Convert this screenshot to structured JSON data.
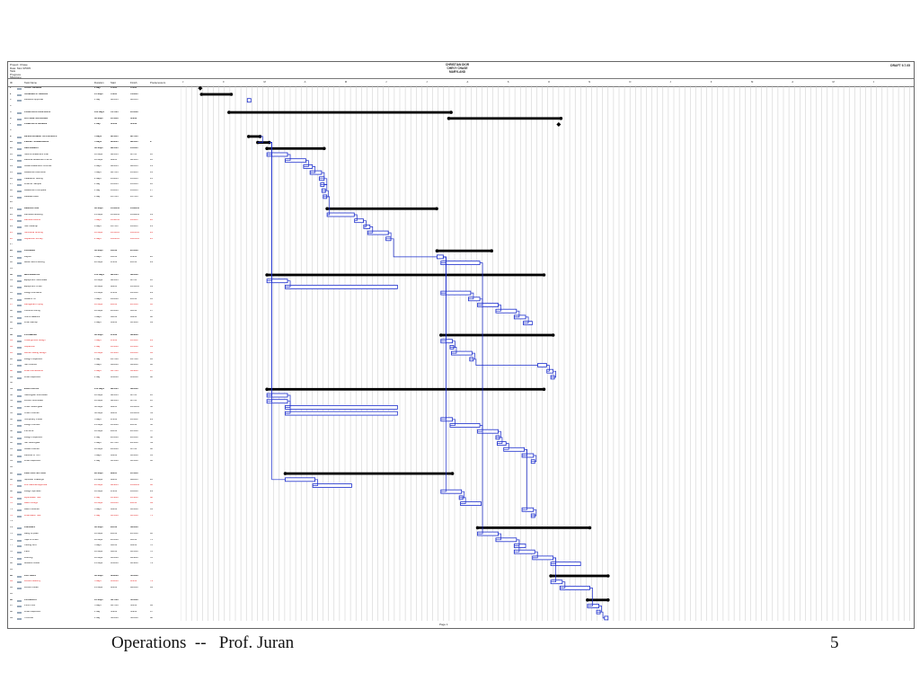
{
  "sheet": {
    "project_info": [
      "Project: Chase",
      "Date: Mon 9/5/05",
      "Task",
      "Progress",
      "Milestone"
    ],
    "title_lines": [
      "CHRISTIAN DIOR",
      "CHEVY CHASE",
      "MARYLAND"
    ],
    "doc_id": "DRAFT 9.7.05",
    "columns": [
      "ID",
      "Task Name",
      "Duration",
      "Start",
      "Finish",
      "Predecessors"
    ],
    "months": [
      "J",
      "F",
      "M",
      "A",
      "M",
      "J",
      "J",
      "A",
      "S",
      "O",
      "N",
      "D",
      "J",
      "F",
      "M",
      "A",
      "M",
      "J"
    ],
    "page_label": "Page 1"
  },
  "tasks": [
    {
      "id": "1",
      "name": "START DESIGN",
      "dur": "1 day",
      "start": "7/5/05",
      "finish": "7/5/05",
      "pred": "",
      "style": "sum"
    },
    {
      "id": "2",
      "name": "SCHEMATIC DESIGN",
      "dur": "15 days",
      "start": "7/6/05",
      "finish": "7/26/05",
      "pred": "",
      "style": "sum"
    },
    {
      "id": "3",
      "name": "Landlord Approval",
      "dur": "1 day",
      "start": "8/10/05",
      "finish": "8/10/05",
      "pred": "",
      "style": ""
    },
    {
      "id": "4",
      "name": "",
      "dur": "",
      "start": "",
      "finish": "",
      "pred": "",
      "style": ""
    },
    {
      "id": "5",
      "name": "CONSTRUCTION DOCS",
      "dur": "120 days",
      "start": "7/27/05",
      "finish": "1/10/06",
      "pred": "",
      "style": "sum"
    },
    {
      "id": "6",
      "name": "OUTSIDE SOURCING",
      "dur": "60 days",
      "start": "1/11/06",
      "finish": "4/4/06",
      "pred": "",
      "style": "sum"
    },
    {
      "id": "7",
      "name": "COMPLETE DESIGN",
      "dur": "1 day",
      "start": "4/5/06",
      "finish": "4/5/06",
      "pred": "",
      "style": "sum"
    },
    {
      "id": "8",
      "name": "",
      "dur": "",
      "start": "",
      "finish": "",
      "pred": "",
      "style": ""
    },
    {
      "id": "9",
      "name": "DEVELOPMENT APPROVALS",
      "dur": "5 days",
      "start": "8/11/05",
      "finish": "8/17/05",
      "pred": "",
      "style": "sum"
    },
    {
      "id": "10",
      "name": "PERMIT SUBMISSION",
      "dur": "5 days",
      "start": "8/18/05",
      "finish": "8/24/05",
      "pred": "9",
      "style": "sum"
    },
    {
      "id": "11",
      "name": "ABATEMENT",
      "dur": "30 days",
      "start": "8/25/05",
      "finish": "10/5/05",
      "pred": "",
      "style": "sum"
    },
    {
      "id": "12",
      "name": "Submit Abatement Plan",
      "dur": "10 days",
      "start": "8/25/05",
      "finish": "9/7/05",
      "pred": "10",
      "style": ""
    },
    {
      "id": "13",
      "name": "Receive Abatement Permit",
      "dur": "10 days",
      "start": "9/8/05",
      "finish": "9/21/05",
      "pred": "12",
      "style": ""
    },
    {
      "id": "14",
      "name": "Install Abatement Controls",
      "dur": "3 days",
      "start": "9/22/05",
      "finish": "9/26/05",
      "pred": "13",
      "style": ""
    },
    {
      "id": "15",
      "name": "Abatement Removal",
      "dur": "5 days",
      "start": "9/27/05",
      "finish": "10/3/05",
      "pred": "14",
      "style": ""
    },
    {
      "id": "16",
      "name": "Clearance Testing",
      "dur": "2 days",
      "start": "10/4/05",
      "finish": "10/5/05",
      "pred": "15",
      "style": ""
    },
    {
      "id": "17",
      "name": "Final Air Sample",
      "dur": "1 day",
      "start": "10/5/05",
      "finish": "10/5/05",
      "pred": "16",
      "style": ""
    },
    {
      "id": "18",
      "name": "Abatement Complete",
      "dur": "1 day",
      "start": "10/6/05",
      "finish": "10/6/05",
      "pred": "17",
      "style": ""
    },
    {
      "id": "19",
      "name": "Release Area",
      "dur": "1 day",
      "start": "10/7/05",
      "finish": "10/7/05",
      "pred": "18",
      "style": ""
    },
    {
      "id": "20",
      "name": "",
      "dur": "",
      "start": "",
      "finish": "",
      "pred": "",
      "style": ""
    },
    {
      "id": "21",
      "name": "DEMOLITION",
      "dur": "60 days",
      "start": "10/10/05",
      "finish": "12/30/05",
      "pred": "",
      "style": "sum"
    },
    {
      "id": "22",
      "name": "Demolish Existing",
      "dur": "15 days",
      "start": "10/10/05",
      "finish": "10/28/05",
      "pred": "19",
      "style": ""
    },
    {
      "id": "23",
      "name": "Remove Debris",
      "dur": "5 days",
      "start": "10/31/05",
      "finish": "11/4/05",
      "pred": "22",
      "style": "red"
    },
    {
      "id": "24",
      "name": "Site Cleanup",
      "dur": "3 days",
      "start": "11/7/05",
      "finish": "11/9/05",
      "pred": "23",
      "style": ""
    },
    {
      "id": "25",
      "name": "Structural Shoring",
      "dur": "10 days",
      "start": "11/10/05",
      "finish": "11/23/05",
      "pred": "24",
      "style": "red"
    },
    {
      "id": "26",
      "name": "Inspection Survey",
      "dur": "2 days",
      "start": "11/24/05",
      "finish": "11/25/05",
      "pred": "25",
      "style": "red"
    },
    {
      "id": "27",
      "name": "",
      "dur": "",
      "start": "",
      "finish": "",
      "pred": "",
      "style": ""
    },
    {
      "id": "28",
      "name": "FRAMING",
      "dur": "30 days",
      "start": "1/2/06",
      "finish": "2/10/06",
      "pred": "",
      "style": "sum"
    },
    {
      "id": "29",
      "name": "Layout",
      "dur": "3 days",
      "start": "1/2/06",
      "finish": "1/4/06",
      "pred": "26",
      "style": ""
    },
    {
      "id": "30",
      "name": "Metal Stud Framing",
      "dur": "20 days",
      "start": "1/5/06",
      "finish": "2/1/06",
      "pred": "29",
      "style": ""
    },
    {
      "id": "31",
      "name": "",
      "dur": "",
      "start": "",
      "finish": "",
      "pred": "",
      "style": ""
    },
    {
      "id": "32",
      "name": "MECHANICAL",
      "dur": "150 days",
      "start": "8/25/05",
      "finish": "3/22/06",
      "pred": "",
      "style": "sum"
    },
    {
      "id": "33",
      "name": "Equipment Submittals",
      "dur": "10 days",
      "start": "8/25/05",
      "finish": "9/7/05",
      "pred": "10",
      "style": ""
    },
    {
      "id": "34",
      "name": "Equipment Order",
      "dur": "60 days",
      "start": "9/8/05",
      "finish": "11/30/05",
      "pred": "33",
      "style": ""
    },
    {
      "id": "35",
      "name": "Rough Ductwork",
      "dur": "15 days",
      "start": "1/5/06",
      "finish": "1/25/06",
      "pred": "29",
      "style": ""
    },
    {
      "id": "36",
      "name": "Install RTU",
      "dur": "5 days",
      "start": "1/26/06",
      "finish": "2/1/06",
      "pred": "35",
      "style": ""
    },
    {
      "id": "37",
      "name": "Refrigerant Piping",
      "dur": "10 days",
      "start": "2/2/06",
      "finish": "2/15/06",
      "pred": "36",
      "style": "red"
    },
    {
      "id": "38",
      "name": "Controls Wiring",
      "dur": "10 days",
      "start": "2/16/06",
      "finish": "3/1/06",
      "pred": "37",
      "style": ""
    },
    {
      "id": "39",
      "name": "Test & Balance",
      "dur": "5 days",
      "start": "3/2/06",
      "finish": "3/8/06",
      "pred": "38",
      "style": ""
    },
    {
      "id": "40",
      "name": "Final Startup",
      "dur": "3 days",
      "start": "3/9/06",
      "finish": "3/13/06",
      "pred": "39",
      "style": ""
    },
    {
      "id": "41",
      "name": "",
      "dur": "",
      "start": "",
      "finish": "",
      "pred": "",
      "style": ""
    },
    {
      "id": "42",
      "name": "PLUMBING",
      "dur": "60 days",
      "start": "1/5/06",
      "finish": "3/29/06",
      "pred": "",
      "style": "sum"
    },
    {
      "id": "43",
      "name": "Underground Rough",
      "dur": "5 days",
      "start": "1/5/06",
      "finish": "1/11/06",
      "pred": "29",
      "style": "red"
    },
    {
      "id": "44",
      "name": "Inspection",
      "dur": "1 day",
      "start": "1/12/06",
      "finish": "1/12/06",
      "pred": "43",
      "style": "red"
    },
    {
      "id": "45",
      "name": "Above Ceiling Rough",
      "dur": "10 days",
      "start": "1/13/06",
      "finish": "1/26/06",
      "pred": "44",
      "style": "red"
    },
    {
      "id": "46",
      "name": "Rough Inspection",
      "dur": "1 day",
      "start": "1/27/06",
      "finish": "1/27/06",
      "pred": "45",
      "style": ""
    },
    {
      "id": "47",
      "name": "Set Fixtures",
      "dur": "5 days",
      "start": "3/20/06",
      "finish": "3/24/06",
      "pred": "46",
      "style": ""
    },
    {
      "id": "48",
      "name": "Final Connections",
      "dur": "3 days",
      "start": "3/27/06",
      "finish": "3/29/06",
      "pred": "47",
      "style": "red"
    },
    {
      "id": "49",
      "name": "Final Inspection",
      "dur": "1 day",
      "start": "3/30/06",
      "finish": "3/30/06",
      "pred": "48",
      "style": ""
    },
    {
      "id": "50",
      "name": "",
      "dur": "",
      "start": "",
      "finish": "",
      "pred": "",
      "style": ""
    },
    {
      "id": "51",
      "name": "ELECTRICAL",
      "dur": "150 days",
      "start": "8/25/05",
      "finish": "3/22/06",
      "pred": "",
      "style": "sum"
    },
    {
      "id": "52",
      "name": "Switchgear Submittals",
      "dur": "10 days",
      "start": "8/25/05",
      "finish": "9/7/05",
      "pred": "10",
      "style": ""
    },
    {
      "id": "53",
      "name": "Fixture Submittals",
      "dur": "10 days",
      "start": "8/25/05",
      "finish": "9/7/05",
      "pred": "10",
      "style": ""
    },
    {
      "id": "54",
      "name": "Order Switchgear",
      "dur": "60 days",
      "start": "9/8/05",
      "finish": "11/30/05",
      "pred": "52",
      "style": ""
    },
    {
      "id": "55",
      "name": "Order Fixtures",
      "dur": "60 days",
      "start": "9/8/05",
      "finish": "11/30/05",
      "pred": "53",
      "style": ""
    },
    {
      "id": "56",
      "name": "Temporary Power",
      "dur": "5 days",
      "start": "1/5/06",
      "finish": "1/11/06",
      "pred": "29",
      "style": ""
    },
    {
      "id": "57",
      "name": "Rough Conduit",
      "dur": "15 days",
      "start": "1/12/06",
      "finish": "2/1/06",
      "pred": "56",
      "style": ""
    },
    {
      "id": "58",
      "name": "Pull Wire",
      "dur": "10 days",
      "start": "2/2/06",
      "finish": "2/15/06",
      "pred": "57",
      "style": ""
    },
    {
      "id": "59",
      "name": "Rough Inspection",
      "dur": "1 day",
      "start": "2/16/06",
      "finish": "2/16/06",
      "pred": "58",
      "style": ""
    },
    {
      "id": "60",
      "name": "Set Switchgear",
      "dur": "3 days",
      "start": "2/17/06",
      "finish": "2/21/06",
      "pred": "59",
      "style": ""
    },
    {
      "id": "61",
      "name": "Install Fixtures",
      "dur": "10 days",
      "start": "2/22/06",
      "finish": "3/7/06",
      "pred": "60",
      "style": ""
    },
    {
      "id": "62",
      "name": "Devices & Trim",
      "dur": "5 days",
      "start": "3/8/06",
      "finish": "3/14/06",
      "pred": "61",
      "style": ""
    },
    {
      "id": "63",
      "name": "Final Inspection",
      "dur": "1 day",
      "start": "3/15/06",
      "finish": "3/15/06",
      "pred": "62",
      "style": ""
    },
    {
      "id": "64",
      "name": "",
      "dur": "",
      "start": "",
      "finish": "",
      "pred": "",
      "style": ""
    },
    {
      "id": "65",
      "name": "FIRE PROTECTION",
      "dur": "90 days",
      "start": "9/8/05",
      "finish": "1/11/06",
      "pred": "",
      "style": "sum"
    },
    {
      "id": "66",
      "name": "Sprinkler Drawings",
      "dur": "15 days",
      "start": "9/8/05",
      "finish": "9/28/05",
      "pred": "10",
      "style": ""
    },
    {
      "id": "67",
      "name": "Fire Marshal Approval",
      "dur": "20 days",
      "start": "9/29/05",
      "finish": "10/26/05",
      "pred": "66",
      "style": "red"
    },
    {
      "id": "68",
      "name": "Rough Sprinkler",
      "dur": "10 days",
      "start": "1/5/06",
      "finish": "1/18/06",
      "pred": "29",
      "style": ""
    },
    {
      "id": "69",
      "name": "Hydrostatic Test",
      "dur": "1 day",
      "start": "1/19/06",
      "finish": "1/19/06",
      "pred": "68",
      "style": "red"
    },
    {
      "id": "70",
      "name": "Alarm Rough",
      "dur": "10 days",
      "start": "1/20/06",
      "finish": "2/2/06",
      "pred": "69",
      "style": "red"
    },
    {
      "id": "71",
      "name": "Alarm Devices",
      "dur": "5 days",
      "start": "3/8/06",
      "finish": "3/14/06",
      "pred": "61",
      "style": ""
    },
    {
      "id": "72",
      "name": "Final Alarm Test",
      "dur": "1 day",
      "start": "3/15/06",
      "finish": "3/15/06",
      "pred": "71",
      "style": "red"
    },
    {
      "id": "73",
      "name": "",
      "dur": "",
      "start": "",
      "finish": "",
      "pred": "",
      "style": ""
    },
    {
      "id": "74",
      "name": "FINISHES",
      "dur": "60 days",
      "start": "2/2/06",
      "finish": "4/26/06",
      "pred": "",
      "style": "sum"
    },
    {
      "id": "75",
      "name": "Hang Drywall",
      "dur": "10 days",
      "start": "2/2/06",
      "finish": "2/15/06",
      "pred": "30",
      "style": ""
    },
    {
      "id": "76",
      "name": "Tape & Finish",
      "dur": "10 days",
      "start": "2/16/06",
      "finish": "3/1/06",
      "pred": "75",
      "style": ""
    },
    {
      "id": "77",
      "name": "Ceiling Grid",
      "dur": "5 days",
      "start": "3/2/06",
      "finish": "3/8/06",
      "pred": "76",
      "style": ""
    },
    {
      "id": "78",
      "name": "Paint",
      "dur": "10 days",
      "start": "3/2/06",
      "finish": "3/15/06",
      "pred": "76",
      "style": ""
    },
    {
      "id": "79",
      "name": "Flooring",
      "dur": "10 days",
      "start": "3/16/06",
      "finish": "3/29/06",
      "pred": "78",
      "style": ""
    },
    {
      "id": "80",
      "name": "Millwork Install",
      "dur": "15 days",
      "start": "3/30/06",
      "finish": "4/19/06",
      "pred": "79",
      "style": ""
    },
    {
      "id": "81",
      "name": "",
      "dur": "",
      "start": "",
      "finish": "",
      "pred": "",
      "style": ""
    },
    {
      "id": "82",
      "name": "FIXTURES",
      "dur": "30 days",
      "start": "3/30/06",
      "finish": "5/10/06",
      "pred": "",
      "style": "sum"
    },
    {
      "id": "83",
      "name": "Fixture Delivery",
      "dur": "5 days",
      "start": "3/30/06",
      "finish": "4/5/06",
      "pred": "79",
      "style": "red"
    },
    {
      "id": "84",
      "name": "Fixture Install",
      "dur": "15 days",
      "start": "4/6/06",
      "finish": "4/26/06",
      "pred": "83",
      "style": ""
    },
    {
      "id": "85",
      "name": "",
      "dur": "",
      "start": "",
      "finish": "",
      "pred": "",
      "style": ""
    },
    {
      "id": "86",
      "name": "CLOSEOUT",
      "dur": "10 days",
      "start": "4/27/06",
      "finish": "5/10/06",
      "pred": "",
      "style": "sum"
    },
    {
      "id": "87",
      "name": "Punch List",
      "dur": "5 days",
      "start": "4/27/06",
      "finish": "5/3/06",
      "pred": "84",
      "style": ""
    },
    {
      "id": "88",
      "name": "Final Inspection",
      "dur": "1 day",
      "start": "5/4/06",
      "finish": "5/4/06",
      "pred": "87",
      "style": ""
    },
    {
      "id": "89",
      "name": "Turnover",
      "dur": "1 day",
      "start": "5/10/06",
      "finish": "5/10/06",
      "pred": "88",
      "style": ""
    }
  ],
  "footer": {
    "text": "Operations  --   Prof. Juran",
    "slide_number": "5"
  }
}
